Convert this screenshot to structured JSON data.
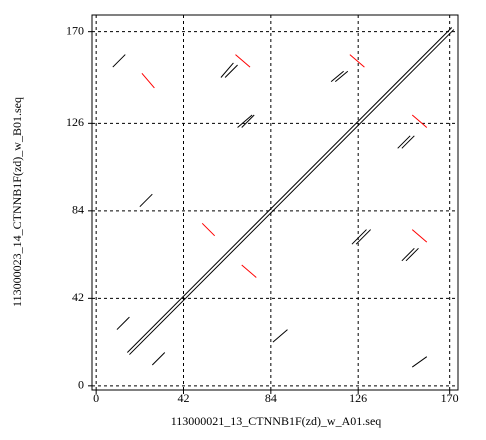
{
  "chart_data": {
    "type": "segment",
    "x_label": "113000021_13_CTNNB1F(zd)_w_A01.seq",
    "y_label": "113000023_14_CTNNB1F(zd)_w_B01.seq",
    "xlim": [
      -2,
      174
    ],
    "ylim": [
      -2,
      178
    ],
    "xticks": [
      0,
      42,
      84,
      126,
      170
    ],
    "yticks": [
      0,
      42,
      84,
      126,
      170
    ],
    "grid": true,
    "series": [
      {
        "color": "#000000",
        "segments": [
          [
            15,
            16,
            171,
            172
          ],
          [
            16,
            15,
            172,
            171
          ],
          [
            8,
            153,
            14,
            159
          ],
          [
            60,
            148,
            66,
            155
          ],
          [
            62,
            148,
            68,
            154
          ],
          [
            68,
            124,
            75,
            130
          ],
          [
            70,
            124,
            76,
            130
          ],
          [
            113,
            146,
            119,
            151
          ],
          [
            115,
            146,
            121,
            151
          ],
          [
            145,
            114,
            151,
            120
          ],
          [
            147,
            114,
            153,
            120
          ],
          [
            21,
            86,
            27,
            92
          ],
          [
            123,
            68,
            130,
            75
          ],
          [
            125,
            68,
            132,
            75
          ],
          [
            147,
            60,
            153,
            66
          ],
          [
            149,
            60,
            155,
            66
          ],
          [
            10,
            27,
            16,
            33
          ],
          [
            27,
            10,
            33,
            16
          ],
          [
            85,
            21,
            92,
            27
          ],
          [
            152,
            9,
            159,
            14
          ]
        ]
      },
      {
        "color": "#ff0000",
        "segments": [
          [
            22,
            150,
            28,
            143
          ],
          [
            67,
            159,
            74,
            153
          ],
          [
            122,
            159,
            129,
            153
          ],
          [
            152,
            130,
            159,
            124
          ],
          [
            51,
            78,
            57,
            72
          ],
          [
            70,
            58,
            77,
            52
          ],
          [
            152,
            75,
            159,
            69
          ]
        ]
      }
    ]
  }
}
